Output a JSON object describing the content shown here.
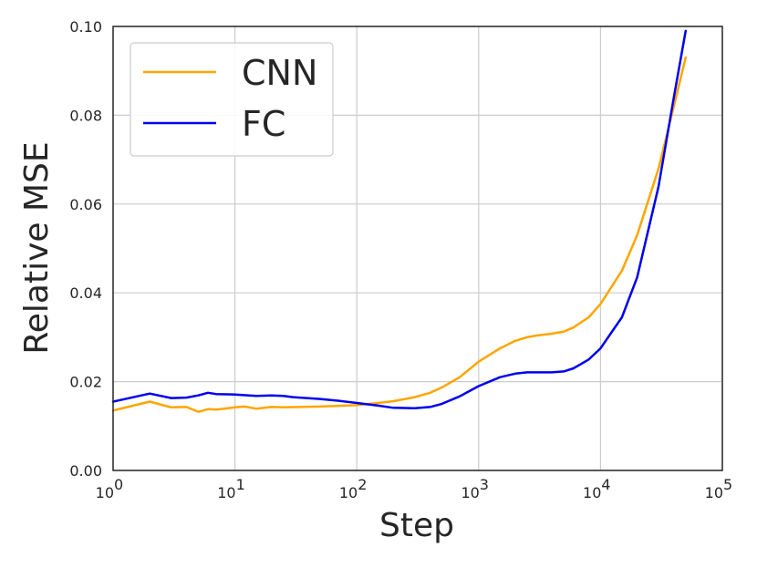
{
  "chart_data": {
    "type": "line",
    "xlabel": "Step",
    "ylabel": "Relative MSE",
    "xscale": "log",
    "xlim": [
      1,
      100000
    ],
    "ylim": [
      0.0,
      0.1
    ],
    "grid": true,
    "legend_position": "top-left",
    "x_ticks": [
      {
        "value": 1,
        "base": "10",
        "exp": "0"
      },
      {
        "value": 10,
        "base": "10",
        "exp": "1"
      },
      {
        "value": 100,
        "base": "10",
        "exp": "2"
      },
      {
        "value": 1000,
        "base": "10",
        "exp": "3"
      },
      {
        "value": 10000,
        "base": "10",
        "exp": "4"
      },
      {
        "value": 100000,
        "base": "10",
        "exp": "5"
      }
    ],
    "y_ticks": [
      {
        "value": 0.0,
        "label": "0.00"
      },
      {
        "value": 0.02,
        "label": "0.02"
      },
      {
        "value": 0.04,
        "label": "0.04"
      },
      {
        "value": 0.06,
        "label": "0.06"
      },
      {
        "value": 0.08,
        "label": "0.08"
      },
      {
        "value": 0.1,
        "label": "0.10"
      }
    ],
    "series": [
      {
        "name": "CNN",
        "color": "#FFA500",
        "points": [
          [
            1,
            0.0135
          ],
          [
            2,
            0.0155
          ],
          [
            3,
            0.0142
          ],
          [
            4,
            0.0143
          ],
          [
            5,
            0.0132
          ],
          [
            6,
            0.0138
          ],
          [
            7,
            0.0137
          ],
          [
            10,
            0.0142
          ],
          [
            12,
            0.0144
          ],
          [
            15,
            0.0139
          ],
          [
            20,
            0.0143
          ],
          [
            25,
            0.0142
          ],
          [
            50,
            0.0144
          ],
          [
            100,
            0.0147
          ],
          [
            150,
            0.0152
          ],
          [
            200,
            0.0156
          ],
          [
            300,
            0.0165
          ],
          [
            400,
            0.0175
          ],
          [
            500,
            0.0187
          ],
          [
            700,
            0.021
          ],
          [
            1000,
            0.0245
          ],
          [
            1500,
            0.0275
          ],
          [
            2000,
            0.0292
          ],
          [
            2500,
            0.03
          ],
          [
            3000,
            0.0304
          ],
          [
            4000,
            0.0308
          ],
          [
            5000,
            0.0313
          ],
          [
            6000,
            0.0322
          ],
          [
            8000,
            0.0345
          ],
          [
            10000,
            0.0375
          ],
          [
            15000,
            0.045
          ],
          [
            20000,
            0.053
          ],
          [
            30000,
            0.068
          ],
          [
            40000,
            0.082
          ],
          [
            50000,
            0.093
          ]
        ]
      },
      {
        "name": "FC",
        "color": "#0000EE",
        "points": [
          [
            1,
            0.0155
          ],
          [
            2,
            0.0173
          ],
          [
            3,
            0.0163
          ],
          [
            4,
            0.0164
          ],
          [
            5,
            0.0169
          ],
          [
            6,
            0.0175
          ],
          [
            7,
            0.0172
          ],
          [
            10,
            0.0171
          ],
          [
            15,
            0.0168
          ],
          [
            20,
            0.0169
          ],
          [
            25,
            0.0168
          ],
          [
            30,
            0.0165
          ],
          [
            50,
            0.0161
          ],
          [
            70,
            0.0157
          ],
          [
            100,
            0.0152
          ],
          [
            150,
            0.0146
          ],
          [
            200,
            0.0141
          ],
          [
            300,
            0.014
          ],
          [
            400,
            0.0143
          ],
          [
            500,
            0.015
          ],
          [
            700,
            0.0167
          ],
          [
            1000,
            0.019
          ],
          [
            1500,
            0.021
          ],
          [
            2000,
            0.0218
          ],
          [
            2500,
            0.0221
          ],
          [
            3000,
            0.0221
          ],
          [
            4000,
            0.0221
          ],
          [
            5000,
            0.0223
          ],
          [
            6000,
            0.023
          ],
          [
            8000,
            0.025
          ],
          [
            10000,
            0.0275
          ],
          [
            15000,
            0.0345
          ],
          [
            20000,
            0.0435
          ],
          [
            30000,
            0.064
          ],
          [
            40000,
            0.084
          ],
          [
            50000,
            0.099
          ]
        ]
      }
    ]
  }
}
